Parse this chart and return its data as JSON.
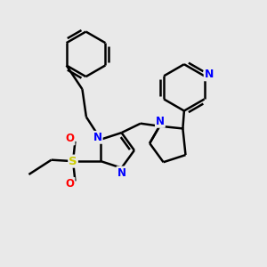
{
  "background_color": "#e9e9e9",
  "atom_colors": {
    "N": "#0000ff",
    "S": "#cccc00",
    "O": "#ff0000",
    "C": "#000000"
  },
  "bond_color": "#000000",
  "bond_width": 1.8,
  "figsize": [
    3.0,
    3.0
  ],
  "dpi": 100,
  "xlim": [
    0,
    10
  ],
  "ylim": [
    0,
    10
  ]
}
